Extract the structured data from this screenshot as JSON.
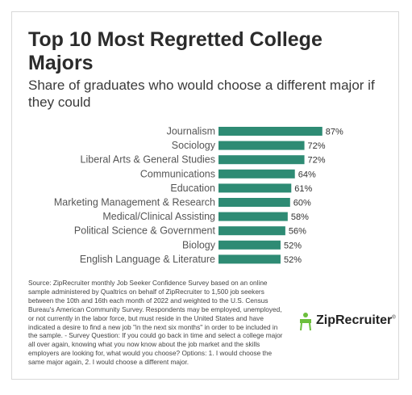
{
  "header": {
    "title": "Top 10 Most Regretted College Majors",
    "subtitle": "Share of graduates who would choose a different major if they could"
  },
  "colors": {
    "bar": "#2e8b74",
    "logo_icon": "#6cbf3c"
  },
  "chart_data": {
    "type": "bar",
    "orientation": "horizontal",
    "title": "Top 10 Most Regretted College Majors",
    "subtitle": "Share of graduates who would choose a different major if they could",
    "xlabel": "",
    "ylabel": "",
    "xlim": [
      0,
      100
    ],
    "grid": false,
    "legend": "none",
    "categories": [
      "Journalism",
      "Sociology",
      "Liberal Arts & General Studies",
      "Communications",
      "Education",
      "Marketing Management & Research",
      "Medical/Clinical Assisting",
      "Political Science & Government",
      "Biology",
      "English Language & Literature"
    ],
    "values": [
      87,
      72,
      72,
      64,
      61,
      60,
      58,
      56,
      52,
      52
    ],
    "value_labels": [
      "87%",
      "72%",
      "72%",
      "64%",
      "61%",
      "60%",
      "58%",
      "56%",
      "52%",
      "52%"
    ]
  },
  "footer": {
    "source": "Source: ZipRecruiter monthly Job Seeker Confidence Survey based on an online sample administered by Qualtrics on behalf of ZipRecruiter to 1,500 job seekers between the 10th and 16th each month of 2022 and weighted to the U.S. Census Bureau's American Community Survey. Respondents may be employed, unemployed, or not currently in the labor force, but must reside in the United States and have indicated a desire to find a new job \"in the next six months\" in order to be included in the sample. - Survey Question: If you could go back in time and select a college major all over again, knowing what you now know about the job market and the skills employers are looking for, what would you choose? Options: 1. I would choose the same major again, 2. I would choose a different major.",
    "logo_text": "ZipRecruiter",
    "logo_mark": "®"
  }
}
